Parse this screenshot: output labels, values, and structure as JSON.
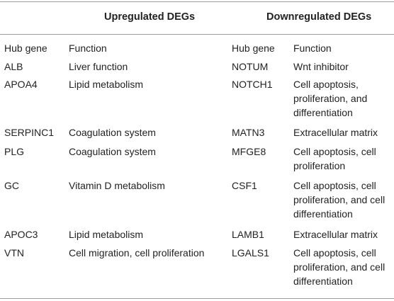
{
  "header": {
    "upregulated": "Upregulated DEGs",
    "downregulated": "Downregulated DEGs"
  },
  "columns": {
    "up_gene": "Hub gene",
    "up_function": "Function",
    "down_gene": "Hub gene",
    "down_function": "Function"
  },
  "rows": [
    {
      "up_gene": "ALB",
      "up_function": "Liver function",
      "down_gene": "NOTUM",
      "down_function": [
        "Wnt inhibitor"
      ]
    },
    {
      "up_gene": "APOA4",
      "up_function": "Lipid metabolism",
      "down_gene": "NOTCH1",
      "down_function": [
        "Cell apoptosis,",
        "proliferation, and",
        "differentiation"
      ]
    },
    {
      "up_gene": "SERPINC1",
      "up_function": "Coagulation system",
      "down_gene": "MATN3",
      "down_function": [
        "Extracellular matrix"
      ]
    },
    {
      "up_gene": "PLG",
      "up_function": "Coagulation system",
      "down_gene": "MFGE8",
      "down_function": [
        "Cell apoptosis, cell",
        "proliferation"
      ]
    },
    {
      "up_gene": "GC",
      "up_function": "Vitamin D metabolism",
      "down_gene": "CSF1",
      "down_function": [
        "Cell apoptosis, cell",
        "proliferation, and cell",
        "differentiation"
      ]
    },
    {
      "up_gene": "APOC3",
      "up_function": "Lipid metabolism",
      "down_gene": "LAMB1",
      "down_function": [
        "Extracellular matrix"
      ]
    },
    {
      "up_gene": "VTN",
      "up_function": "Cell migration, cell proliferation",
      "down_gene": "LGALS1",
      "down_function": [
        "Cell apoptosis, cell",
        "proliferation, and cell",
        "differentiation"
      ]
    }
  ]
}
